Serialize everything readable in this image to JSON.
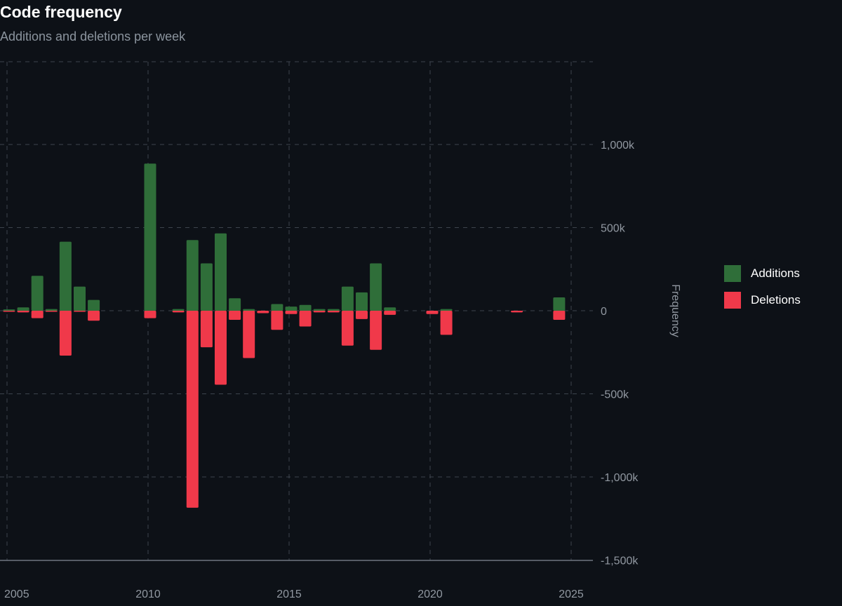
{
  "header": {
    "title": "Code frequency",
    "subtitle": "Additions and deletions per week"
  },
  "colors": {
    "background": "#0d1117",
    "additions": "#2f6e39",
    "deletions": "#f0394a",
    "grid": "#3d444d",
    "axis": "#6e7681",
    "tick_text": "#9198a1"
  },
  "chart_data": {
    "type": "bar",
    "title": "Code frequency",
    "subtitle": "Additions and deletions per week",
    "xlabel": "",
    "ylabel": "Frequency",
    "ylim": [
      -1500000,
      1500000
    ],
    "xlim": [
      2005,
      2026.5
    ],
    "grid": true,
    "legend_position": "right",
    "x_ticks": [
      {
        "value": 2005,
        "label": "2005"
      },
      {
        "value": 2010,
        "label": "2010"
      },
      {
        "value": 2015,
        "label": "2015"
      },
      {
        "value": 2020,
        "label": "2020"
      },
      {
        "value": 2025,
        "label": "2025"
      }
    ],
    "y_ticks": [
      {
        "value": 1000000,
        "label": "1,000k"
      },
      {
        "value": 500000,
        "label": "500k"
      },
      {
        "value": 0,
        "label": "0"
      },
      {
        "value": -500000,
        "label": "-500k"
      },
      {
        "value": -1000000,
        "label": "-1,000k"
      },
      {
        "value": -1500000,
        "label": "-1,500k"
      }
    ],
    "x": [
      2005.0,
      2005.5,
      2006.0,
      2006.5,
      2007.0,
      2007.5,
      2008.0,
      2010.0,
      2011.0,
      2011.5,
      2012.0,
      2012.5,
      2013.0,
      2013.5,
      2014.0,
      2014.5,
      2015.0,
      2015.5,
      2016.0,
      2016.5,
      2017.0,
      2017.5,
      2018.0,
      2018.5,
      2020.0,
      2020.5,
      2023.0,
      2024.5
    ],
    "series": [
      {
        "name": "Additions",
        "values": [
          8000,
          20000,
          210000,
          10000,
          415000,
          145000,
          65000,
          885000,
          10000,
          425000,
          285000,
          465000,
          75000,
          10000,
          0,
          40000,
          25000,
          35000,
          10000,
          10000,
          145000,
          110000,
          285000,
          20000,
          0,
          10000,
          0,
          80000
        ]
      },
      {
        "name": "Deletions",
        "values": [
          -3000,
          -10000,
          -45000,
          -3000,
          -270000,
          -3000,
          -60000,
          -45000,
          -10000,
          -1185000,
          -220000,
          -445000,
          -55000,
          -285000,
          -15000,
          -115000,
          -20000,
          -95000,
          -10000,
          -10000,
          -210000,
          -50000,
          -235000,
          -25000,
          -20000,
          -145000,
          -10000,
          -55000
        ]
      }
    ]
  }
}
